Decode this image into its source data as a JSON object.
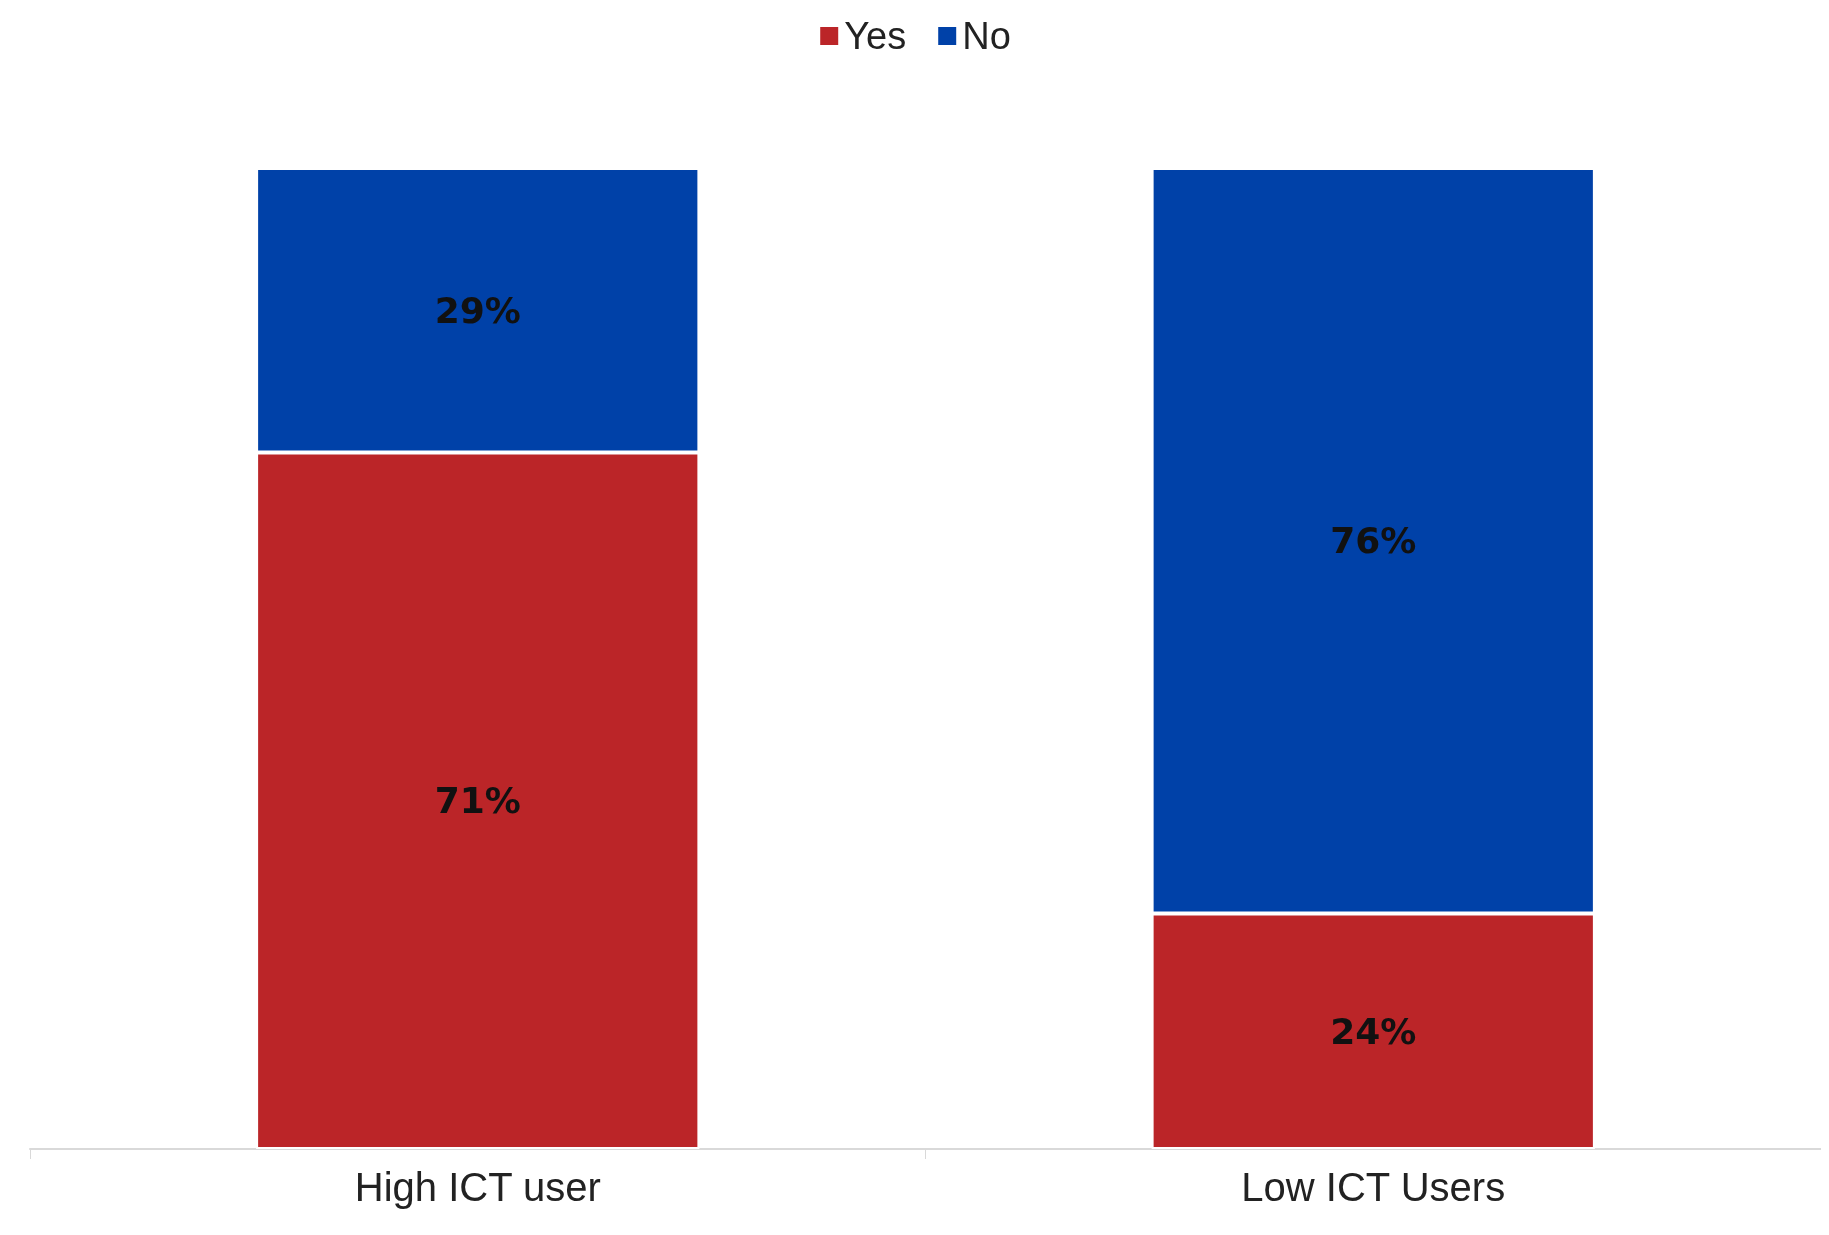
{
  "chart_data": {
    "type": "bar",
    "stacked": true,
    "categories": [
      "High ICT user",
      "Low ICT Users"
    ],
    "series": [
      {
        "name": "Yes",
        "color": "#bb2528",
        "values": [
          71,
          24
        ],
        "value_labels": [
          "71%",
          "24%"
        ]
      },
      {
        "name": "No",
        "color": "#0041a8",
        "values": [
          29,
          76
        ],
        "value_labels": [
          "29%",
          "76%"
        ]
      }
    ],
    "legend": "top",
    "grid": false
  }
}
